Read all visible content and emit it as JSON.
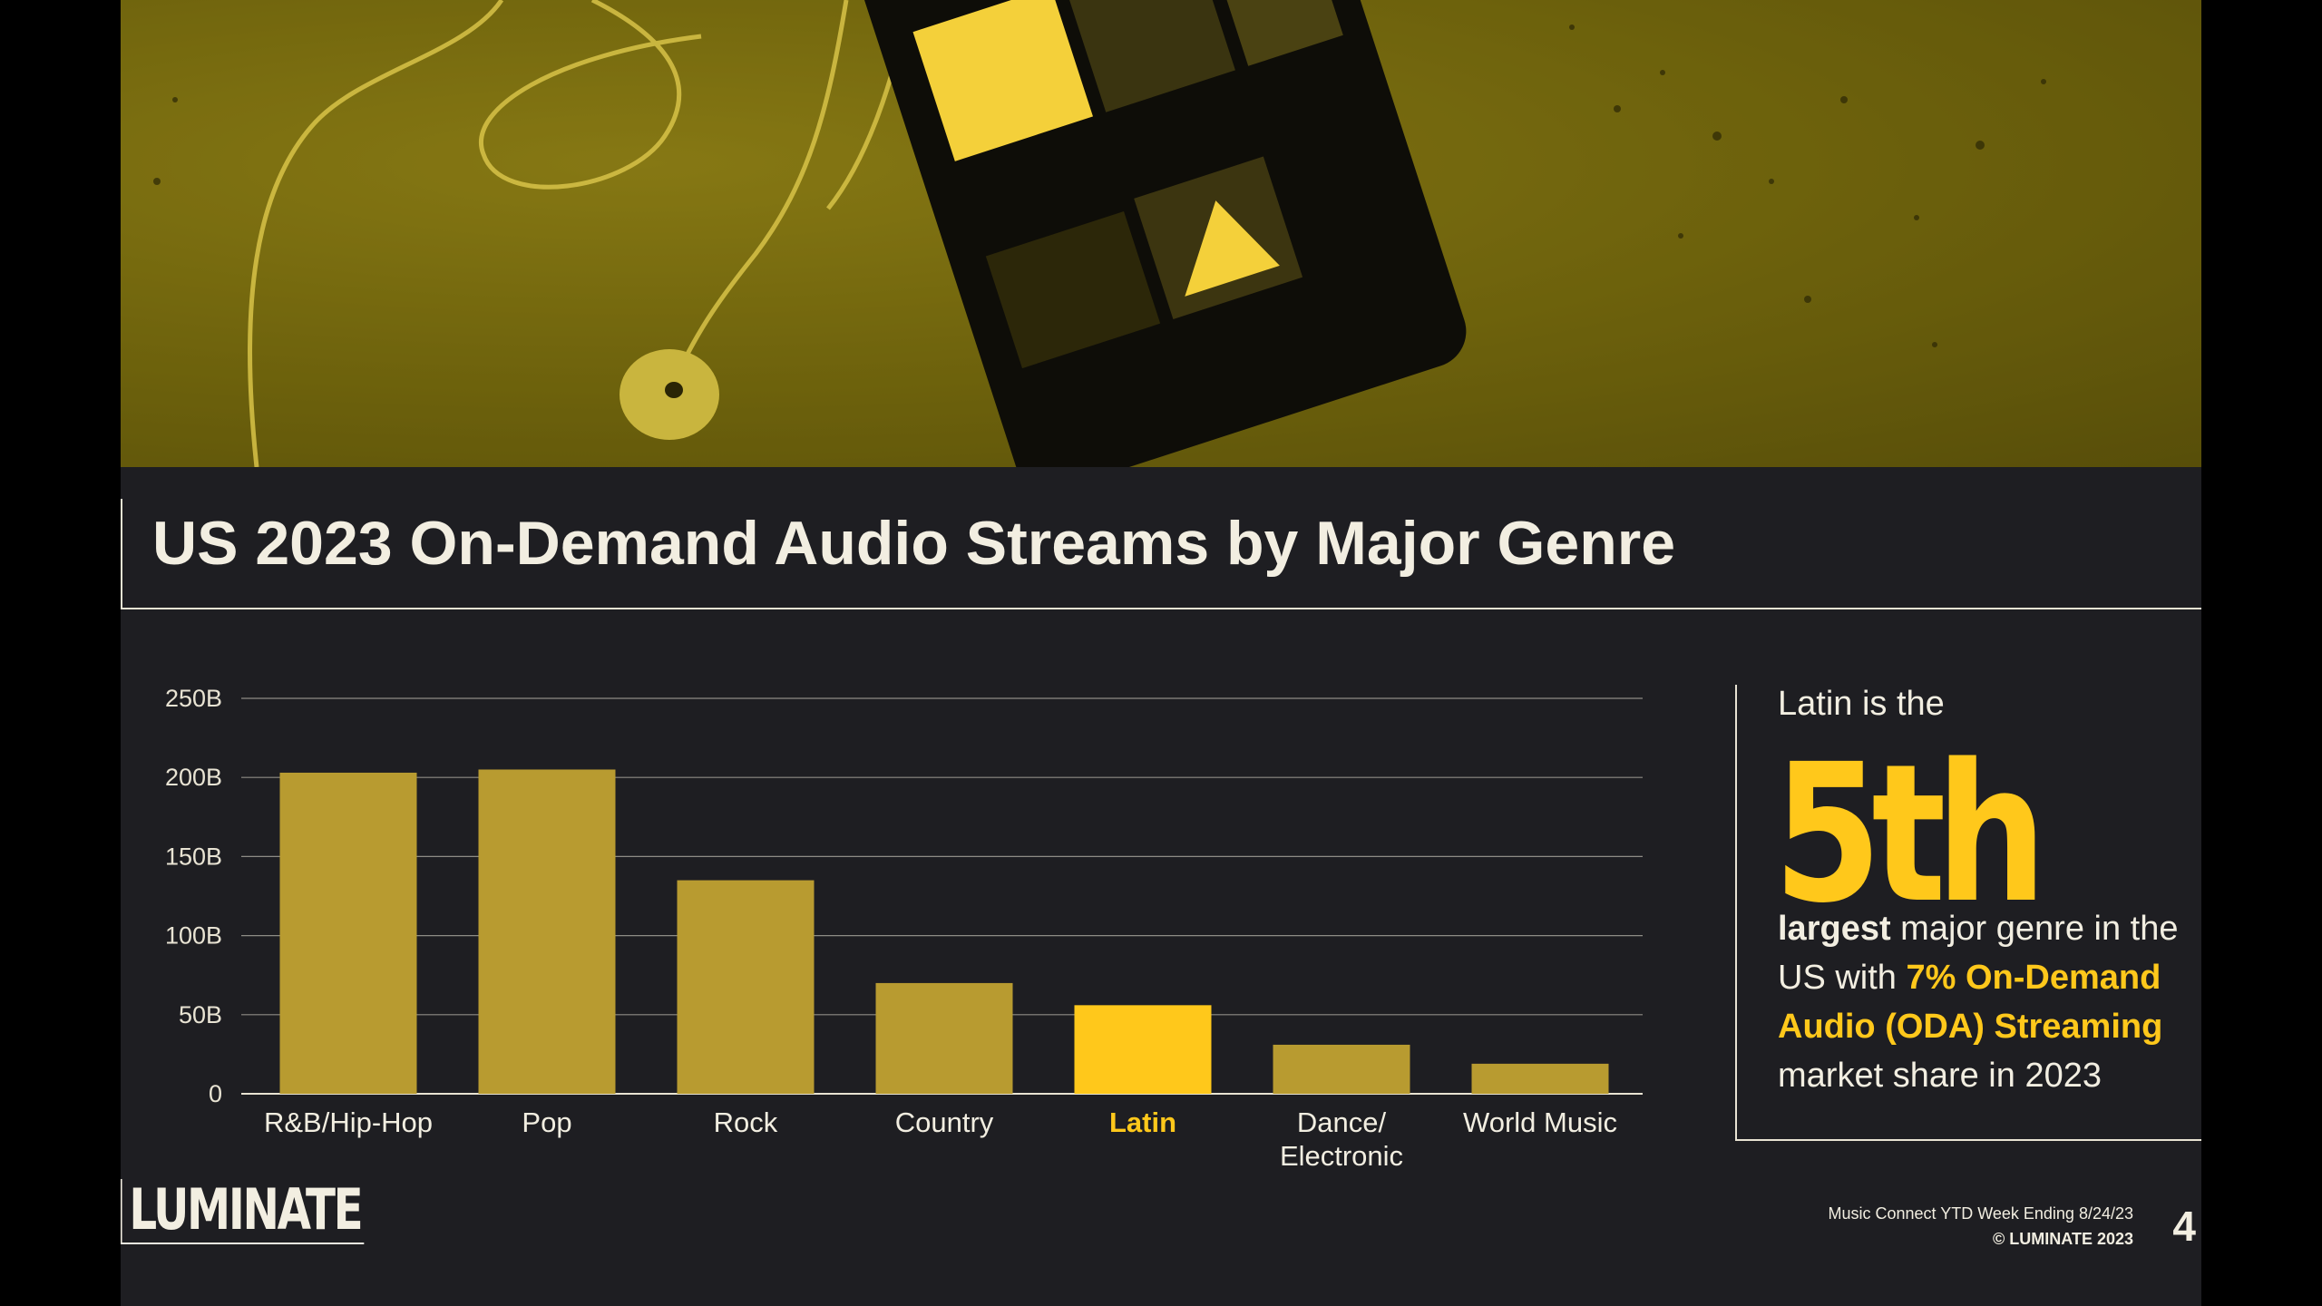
{
  "title": "US 2023 On-Demand Audio Streams by Major Genre",
  "colors": {
    "bar": "#b89b30",
    "highlight": "#ffc81b",
    "background": "#1e1e22",
    "text": "#f2eee1",
    "grid": "#8e8c86"
  },
  "chart_data": {
    "type": "bar",
    "categories": [
      "R&B/Hip-Hop",
      "Pop",
      "Rock",
      "Country",
      "Latin",
      "Dance/\nElectronic",
      "World Music"
    ],
    "values": [
      203,
      205,
      135,
      70,
      56,
      31,
      19
    ],
    "highlight_category": "Latin",
    "yticks": [
      "0",
      "50B",
      "100B",
      "150B",
      "200B",
      "250B"
    ],
    "ytick_values": [
      0,
      50,
      100,
      150,
      200,
      250
    ],
    "ylim": [
      0,
      250
    ],
    "unit": "B",
    "grid": true,
    "title": "US 2023 On-Demand Audio Streams by Major Genre"
  },
  "callout": {
    "intro": "Latin is the",
    "rank": "5th",
    "body_bold": "largest",
    "body_text_1": " major genre in the US with ",
    "body_accent": "7% On-Demand Audio (ODA) Streaming",
    "body_text_2": " market share in 2023"
  },
  "footer": {
    "logo": "LUMINATE",
    "source": "Music Connect YTD Week Ending 8/24/23",
    "copyright": "© LUMINATE 2023",
    "page_number": "4"
  },
  "hero": {
    "image_description_icon": "phone-with-earbuds-photo"
  }
}
